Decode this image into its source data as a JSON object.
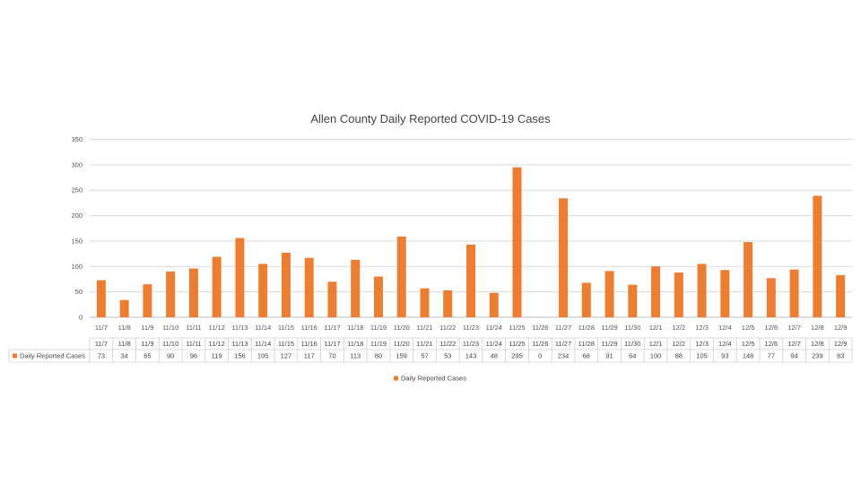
{
  "chart_data": {
    "type": "bar",
    "title": "Allen County Daily Reported COVID-19 Cases",
    "xlabel": "",
    "ylabel": "",
    "ylim": [
      0,
      350
    ],
    "yticks": [
      0,
      50,
      100,
      150,
      200,
      250,
      300,
      350
    ],
    "grid": true,
    "legend_position": "bottom",
    "data_table": true,
    "categories": [
      "11/7",
      "11/8",
      "11/9",
      "11/10",
      "11/11",
      "11/12",
      "11/13",
      "11/14",
      "11/15",
      "11/16",
      "11/17",
      "11/18",
      "11/19",
      "11/20",
      "11/21",
      "11/22",
      "11/23",
      "11/24",
      "11/25",
      "11/26",
      "11/27",
      "11/28",
      "11/29",
      "11/30",
      "12/1",
      "12/2",
      "12/3",
      "12/4",
      "12/5",
      "12/6",
      "12/7",
      "12/8",
      "12/9"
    ],
    "series": [
      {
        "name": "Daily Reported Cases",
        "color": "#ED7D31",
        "values": [
          73,
          34,
          65,
          90,
          96,
          119,
          156,
          105,
          127,
          117,
          70,
          113,
          80,
          159,
          57,
          53,
          143,
          48,
          295,
          0,
          234,
          68,
          91,
          64,
          100,
          88,
          105,
          93,
          148,
          77,
          94,
          239,
          83
        ]
      }
    ]
  }
}
